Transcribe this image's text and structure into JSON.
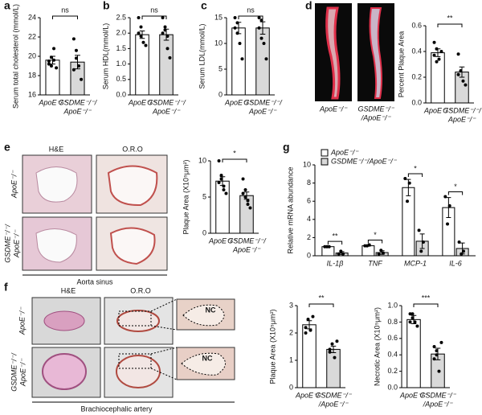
{
  "figure": {
    "d": {
      "label": "d",
      "columns": [
        [
          "ApoE⁻/⁻"
        ],
        [
          "GSDME⁻/⁻",
          "/ApoE⁻/⁻"
        ]
      ]
    },
    "e": {
      "label": "e",
      "columns": [
        "H&E",
        "O.R.O"
      ],
      "rows": [
        [
          "ApoE⁻/⁻"
        ],
        [
          "GSDME⁻/⁻/",
          "ApoE⁻/⁻"
        ]
      ],
      "caption": "Aorta sinus"
    },
    "f": {
      "label": "f",
      "columns": [
        "H&E",
        "O.R.O"
      ],
      "rows": [
        [
          "ApoE⁻/⁻"
        ],
        [
          "GSDME⁻/⁻/",
          "ApoE⁻/⁻"
        ]
      ],
      "insets": [
        "NC",
        "NC"
      ],
      "caption": "Brachiocephalic artery"
    }
  },
  "chart_data": [
    {
      "type": "bar",
      "label": "a",
      "ylabel": "Serum total cholesterol (mmol/L)",
      "categories": [
        [
          "ApoE⁻/⁻"
        ],
        [
          "GSDME⁻/⁻/",
          "ApoE⁻/⁻"
        ]
      ],
      "colors": [
        "#ffffff",
        "#d9d9d9"
      ],
      "values": [
        19.6,
        19.4
      ],
      "errors": [
        0.4,
        0.7
      ],
      "points": [
        [
          19.2,
          19.9,
          20.8,
          18.8,
          19.5,
          19.0,
          19.6
        ],
        [
          21.8,
          20.6,
          19.0,
          17.6,
          18.6,
          19.8
        ]
      ],
      "annotation": "ns",
      "ylim": [
        16,
        24
      ],
      "yticks": [
        16,
        18,
        20,
        22,
        24
      ]
    },
    {
      "type": "bar",
      "label": "b",
      "ylabel": "Serum HDL(mmol/L)",
      "categories": [
        [
          "ApoE⁻/⁻"
        ],
        [
          "GSDME⁻/⁻/",
          "ApoE⁻/⁻"
        ]
      ],
      "colors": [
        "#ffffff",
        "#d9d9d9"
      ],
      "values": [
        1.95,
        1.95
      ],
      "errors": [
        0.12,
        0.18
      ],
      "points": [
        [
          2.5,
          2.2,
          1.7,
          1.6,
          2.0,
          1.9
        ],
        [
          2.5,
          2.2,
          1.5,
          1.2,
          2.0,
          2.1,
          1.9
        ]
      ],
      "annotation": "ns",
      "ylim": [
        0,
        2.5
      ],
      "yticks": [
        {
          "value": 0,
          "label": "0.0"
        },
        {
          "value": 0.5,
          "label": "0.5"
        },
        {
          "value": 1,
          "label": "1.0"
        },
        {
          "value": 1.5,
          "label": "1.5"
        },
        {
          "value": 2,
          "label": "2.0"
        },
        {
          "value": 2.5,
          "label": "2.5"
        }
      ]
    },
    {
      "type": "bar",
      "label": "c",
      "ylabel": "Serum LDL(mmol/L)",
      "categories": [
        [
          "ApoE⁻/⁻"
        ],
        [
          "GSDME⁻/⁻/",
          "ApoE⁻/⁻"
        ]
      ],
      "colors": [
        "#ffffff",
        "#d9d9d9"
      ],
      "values": [
        13,
        13
      ],
      "errors": [
        1.1,
        1.2
      ],
      "points": [
        [
          15,
          14,
          10,
          7,
          13,
          12
        ],
        [
          15,
          14.5,
          10,
          7,
          13,
          11
        ]
      ],
      "annotation": "ns",
      "ylim": [
        0,
        15
      ],
      "yticks": [
        0,
        5,
        10,
        15
      ]
    },
    {
      "type": "bar",
      "ylabel": "Percent Plaque Area",
      "categories": [
        [
          "ApoE⁻/⁻"
        ],
        [
          "GSDME⁻/⁻/",
          "ApoE⁻/⁻"
        ]
      ],
      "colors": [
        "#ffffff",
        "#d9d9d9"
      ],
      "values": [
        0.39,
        0.24
      ],
      "errors": [
        0.03,
        0.04
      ],
      "points": [
        [
          0.47,
          0.42,
          0.34,
          0.4,
          0.37,
          0.32
        ],
        [
          0.38,
          0.25,
          0.17,
          0.14,
          0.22
        ]
      ],
      "annotation": "**",
      "ylim": [
        0,
        0.6
      ],
      "yticks": [
        {
          "value": 0,
          "label": "0.0"
        },
        {
          "value": 0.2,
          "label": "0.2"
        },
        {
          "value": 0.4,
          "label": "0.4"
        },
        {
          "value": 0.6,
          "label": "0.6"
        }
      ]
    },
    {
      "type": "bar",
      "ylabel": "Plaque Area (X10⁵μm²)",
      "categories": [
        [
          "ApoE⁻/⁻"
        ],
        [
          "GSDME⁻/⁻/",
          "ApoE⁻/⁻"
        ]
      ],
      "colors": [
        "#ffffff",
        "#d9d9d9"
      ],
      "values": [
        7.2,
        5.2
      ],
      "errors": [
        0.6,
        0.5
      ],
      "points": [
        [
          10,
          7.5,
          6.5,
          5.5,
          7,
          8,
          6
        ],
        [
          7.5,
          5,
          4,
          3.5,
          5.5,
          6,
          4.5
        ]
      ],
      "annotation": "*",
      "ylim": [
        0,
        10
      ],
      "yticks": [
        0,
        5,
        10
      ]
    },
    {
      "type": "grouped",
      "label": "g",
      "ylabel": "Relative mRNA abundance",
      "categories": [
        "IL-1β",
        "TNF",
        "MCP-1",
        "IL-6"
      ],
      "series": [
        {
          "name": "ApoE⁻/⁻",
          "color": "#ffffff",
          "values": [
            1,
            1.1,
            7.5,
            5.3
          ],
          "errors": [
            0.05,
            0.05,
            0.9,
            1.1
          ],
          "points": [
            [
              1,
              1,
              1
            ],
            [
              1.1,
              1.1,
              1.2
            ],
            [
              8.5,
              6,
              8
            ],
            [
              6.5,
              3.5,
              5.5
            ]
          ]
        },
        {
          "name": "GSDME⁻/⁻/ApoE⁻/⁻",
          "color": "#d9d9d9",
          "values": [
            0.3,
            0.35,
            1.6,
            0.8
          ],
          "errors": [
            0.15,
            0.2,
            0.8,
            0.6
          ],
          "points": [
            [
              0.2,
              0.5,
              0.2
            ],
            [
              0.2,
              0.6,
              0.3
            ],
            [
              2.8,
              0.5,
              1.5
            ],
            [
              1.5,
              0.2,
              0.5
            ]
          ]
        }
      ],
      "annotations": [
        "**",
        "*",
        "*",
        "*"
      ],
      "ylim": [
        0,
        10
      ],
      "yticks": [
        0,
        2,
        4,
        6,
        8,
        10
      ]
    },
    {
      "type": "bar",
      "ylabel": "Plaque Area (X10⁵μm²)",
      "categories": [
        [
          "ApoE⁻/⁻"
        ],
        [
          "GSDME⁻/⁻",
          "/ApoE⁻/⁻"
        ]
      ],
      "colors": [
        "#ffffff",
        "#d9d9d9"
      ],
      "values": [
        2.3,
        1.4
      ],
      "errors": [
        0.15,
        0.12
      ],
      "points": [
        [
          2.2,
          2.5,
          2.1,
          2.6,
          2.0
        ],
        [
          1.4,
          1.6,
          1.1,
          1.7,
          1.3
        ]
      ],
      "annotation": "**",
      "ylim": [
        0,
        3
      ],
      "yticks": [
        0,
        1,
        2,
        3
      ]
    },
    {
      "type": "bar",
      "ylabel": "Necrotic Area (X10⁵μm²)",
      "categories": [
        [
          "ApoE⁻/⁻"
        ],
        [
          "GSDME⁻/⁻",
          "/ApoE⁻/⁻"
        ]
      ],
      "colors": [
        "#ffffff",
        "#d9d9d9"
      ],
      "values": [
        0.83,
        0.41
      ],
      "errors": [
        0.05,
        0.07
      ],
      "points": [
        [
          0.9,
          0.85,
          0.8,
          0.75,
          0.8,
          0.9
        ],
        [
          0.5,
          0.45,
          0.2,
          0.55,
          0.35,
          0.4
        ]
      ],
      "annotation": "***",
      "ylim": [
        0,
        1
      ],
      "yticks": [
        {
          "value": 0,
          "label": "0.0"
        },
        {
          "value": 0.2,
          "label": "0.2"
        },
        {
          "value": 0.4,
          "label": "0.4"
        },
        {
          "value": 0.6,
          "label": "0.6"
        },
        {
          "value": 0.8,
          "label": "0.8"
        },
        {
          "value": 1,
          "label": "1.0"
        }
      ]
    }
  ]
}
